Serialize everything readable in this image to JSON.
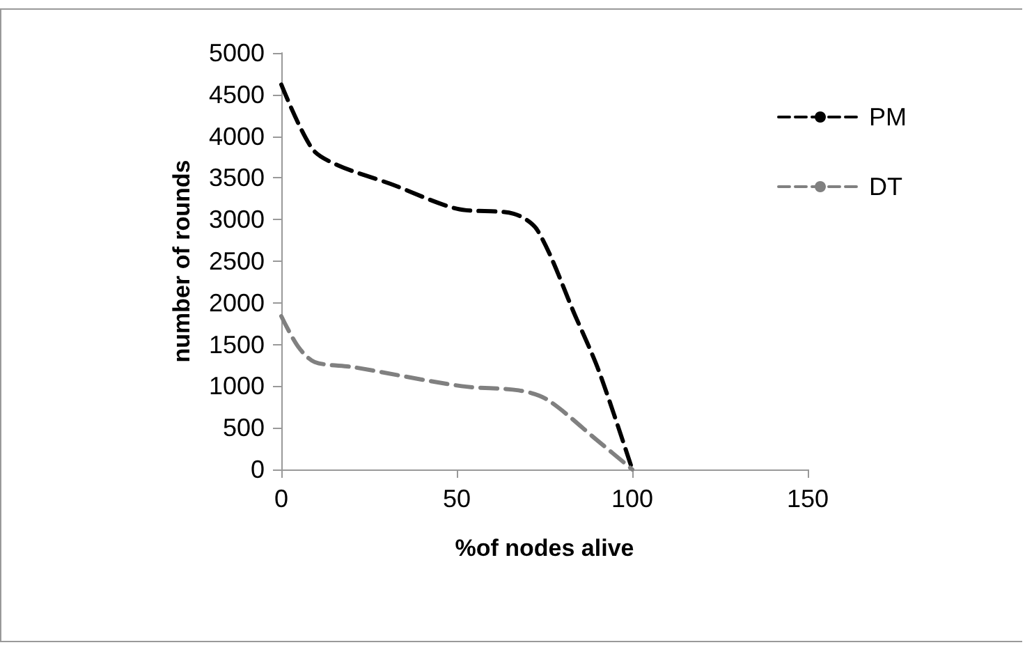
{
  "chart_data": {
    "type": "line",
    "xlabel": "%of nodes alive",
    "ylabel": "number of rounds",
    "xlim": [
      0,
      150
    ],
    "xticks": [
      0,
      50,
      100,
      150
    ],
    "ylim": [
      0,
      5000
    ],
    "yticks": [
      0,
      500,
      1000,
      1500,
      2000,
      2500,
      3000,
      3500,
      4000,
      4500,
      5000
    ],
    "grid": false,
    "legend": "right",
    "marker": "none",
    "line_style": "dashed",
    "series": [
      {
        "name": "PM",
        "color": "#000000",
        "x": [
          0,
          8.8,
          16.2,
          31,
          50,
          66.2,
          73,
          83.8,
          90.5,
          100
        ],
        "values": [
          4620,
          3850,
          3650,
          3430,
          3130,
          3070,
          2870,
          1840,
          1180,
          0
        ]
      },
      {
        "name": "DT",
        "color": "#808080",
        "x": [
          0,
          4.7,
          9.5,
          20.3,
          51.4,
          67.6,
          75.7,
          90,
          100
        ],
        "values": [
          1840,
          1480,
          1290,
          1230,
          1000,
          950,
          840,
          350,
          0
        ]
      }
    ]
  }
}
